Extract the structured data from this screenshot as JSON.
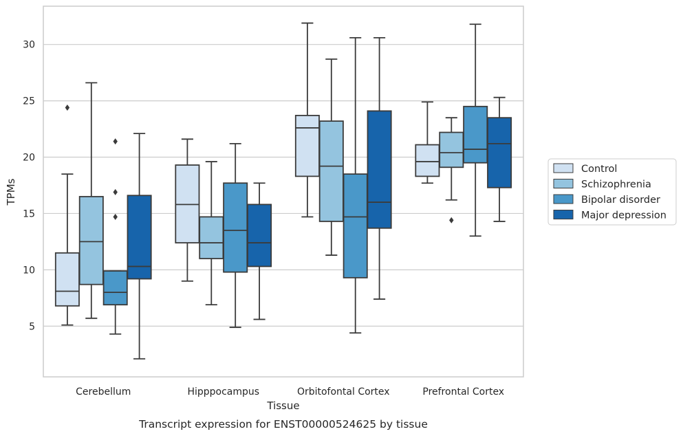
{
  "caption": "Transcript expression for ENST00000524625 by tissue",
  "chart_data": {
    "type": "boxplot",
    "title": "",
    "xlabel": "Tissue",
    "ylabel": "TPMs",
    "ylim": [
      0.5,
      33.4
    ],
    "yticks": [
      5,
      10,
      15,
      20,
      25,
      30
    ],
    "grid": "horizontal",
    "legend_position": "right",
    "categories": [
      "Cerebellum",
      "Hipppocampus",
      "Orbitofontal Cortex",
      "Prefrontal Cortex"
    ],
    "series": [
      {
        "name": "Control",
        "color": "#d0e1f2",
        "boxes": [
          {
            "whislo": 5.1,
            "q1": 6.8,
            "med": 8.1,
            "q3": 11.5,
            "whishi": 18.5,
            "fliers": [
              24.4
            ]
          },
          {
            "whislo": 9.0,
            "q1": 12.4,
            "med": 15.8,
            "q3": 19.3,
            "whishi": 21.6,
            "fliers": []
          },
          {
            "whislo": 14.7,
            "q1": 18.3,
            "med": 22.6,
            "q3": 23.7,
            "whishi": 31.9,
            "fliers": []
          },
          {
            "whislo": 17.7,
            "q1": 18.3,
            "med": 19.6,
            "q3": 21.1,
            "whishi": 24.9,
            "fliers": []
          }
        ]
      },
      {
        "name": "Schizophrenia",
        "color": "#94c4df",
        "boxes": [
          {
            "whislo": 5.7,
            "q1": 8.7,
            "med": 12.5,
            "q3": 16.5,
            "whishi": 26.6,
            "fliers": []
          },
          {
            "whislo": 6.9,
            "q1": 11.0,
            "med": 12.4,
            "q3": 14.7,
            "whishi": 19.6,
            "fliers": []
          },
          {
            "whislo": 11.3,
            "q1": 14.3,
            "med": 19.2,
            "q3": 23.2,
            "whishi": 28.7,
            "fliers": []
          },
          {
            "whislo": 16.2,
            "q1": 19.1,
            "med": 20.4,
            "q3": 22.2,
            "whishi": 23.5,
            "fliers": [
              14.4
            ]
          }
        ]
      },
      {
        "name": "Bipolar disorder",
        "color": "#4a98c9",
        "boxes": [
          {
            "whislo": 4.3,
            "q1": 6.9,
            "med": 8.0,
            "q3": 9.9,
            "whishi": 9.9,
            "fliers": [
              14.7,
              16.9,
              21.4
            ]
          },
          {
            "whislo": 4.9,
            "q1": 9.8,
            "med": 13.5,
            "q3": 17.7,
            "whishi": 21.2,
            "fliers": []
          },
          {
            "whislo": 4.4,
            "q1": 9.3,
            "med": 14.7,
            "q3": 18.5,
            "whishi": 30.6,
            "fliers": []
          },
          {
            "whislo": 13.0,
            "q1": 19.5,
            "med": 20.7,
            "q3": 24.5,
            "whishi": 31.8,
            "fliers": []
          }
        ]
      },
      {
        "name": "Major depression",
        "color": "#1764ab",
        "boxes": [
          {
            "whislo": 2.1,
            "q1": 9.2,
            "med": 10.3,
            "q3": 16.6,
            "whishi": 22.1,
            "fliers": []
          },
          {
            "whislo": 5.6,
            "q1": 10.3,
            "med": 12.4,
            "q3": 15.8,
            "whishi": 17.7,
            "fliers": []
          },
          {
            "whislo": 7.4,
            "q1": 13.7,
            "med": 16.0,
            "q3": 24.1,
            "whishi": 30.6,
            "fliers": []
          },
          {
            "whislo": 14.3,
            "q1": 17.3,
            "med": 21.2,
            "q3": 23.5,
            "whishi": 25.3,
            "fliers": []
          }
        ]
      }
    ]
  }
}
